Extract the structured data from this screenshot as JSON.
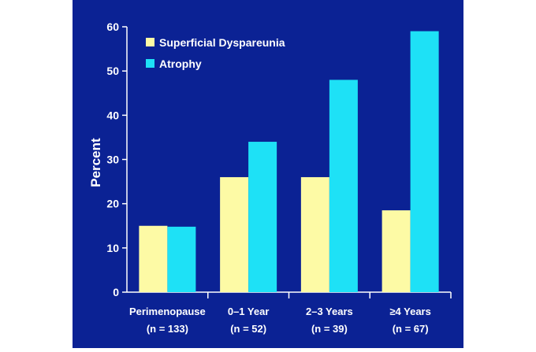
{
  "chart_data": {
    "type": "bar",
    "categories": [
      "Perimenopause",
      "0–1 Year",
      "2–3 Years",
      "≥4 Years"
    ],
    "category_sublabels": [
      "(n = 133)",
      "(n = 52)",
      "(n = 39)",
      "(n = 67)"
    ],
    "series": [
      {
        "name": "Superficial Dyspareunia",
        "values": [
          15,
          26,
          26,
          18.5
        ],
        "color": "#fdfaa5"
      },
      {
        "name": "Atrophy",
        "values": [
          14.8,
          34,
          48,
          59
        ],
        "color": "#1ee1f6"
      }
    ],
    "title": "",
    "xlabel": "",
    "ylabel": "Percent",
    "ylim": [
      0,
      60
    ],
    "yticks": [
      0,
      10,
      20,
      30,
      40,
      50,
      60
    ],
    "grid": false,
    "legend_position": "top-left",
    "background_color": "#0b2294",
    "axis_color": "#ffffff"
  }
}
